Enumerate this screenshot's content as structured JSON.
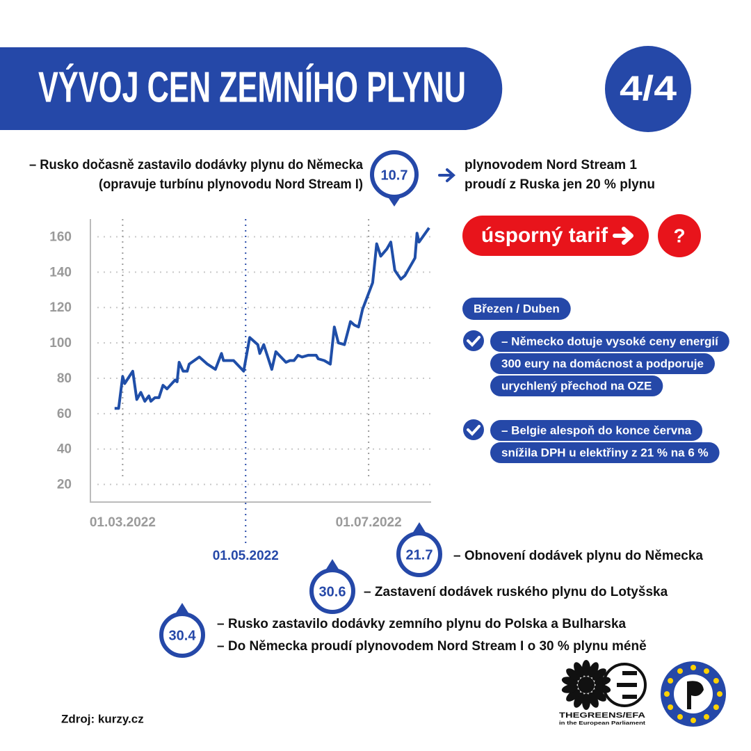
{
  "header": {
    "title": "VÝVOJ CEN ZEMNÍHO PLYNU",
    "page": "4/4"
  },
  "chart_data": {
    "type": "line",
    "color": "#1f4ea8",
    "x": [
      "25.02.2022",
      "27.02.2022",
      "01.03.2022",
      "02.03.2022",
      "06.03.2022",
      "08.03.2022",
      "10.03.2022",
      "12.03.2022",
      "14.03.2022",
      "15.03.2022",
      "17.03.2022",
      "19.03.2022",
      "21.03.2022",
      "23.03.2022",
      "27.03.2022",
      "28.03.2022",
      "29.03.2022",
      "31.03.2022",
      "02.04.2022",
      "03.04.2022",
      "08.04.2022",
      "12.04.2022",
      "16.04.2022",
      "19.04.2022",
      "20.04.2022",
      "25.04.2022",
      "30.04.2022",
      "03.05.2022",
      "07.05.2022",
      "08.05.2022",
      "10.05.2022",
      "14.05.2022",
      "16.05.2022",
      "21.05.2022",
      "23.05.2022",
      "25.05.2022",
      "27.05.2022",
      "29.05.2022",
      "01.06.2022",
      "05.06.2022",
      "06.06.2022",
      "09.06.2022",
      "12.06.2022",
      "14.06.2022",
      "16.06.2022",
      "19.06.2022",
      "22.06.2022",
      "24.06.2022",
      "26.06.2022",
      "28.06.2022",
      "29.06.2022",
      "03.07.2022",
      "05.07.2022",
      "07.07.2022",
      "10.07.2022",
      "12.07.2022",
      "14.07.2022",
      "17.07.2022",
      "19.07.2022",
      "23.07.2022",
      "24.07.2022",
      "25.07.2022",
      "26.07.2022",
      "31.07.2022"
    ],
    "values": [
      63,
      63,
      81,
      77,
      84,
      68,
      72,
      67,
      70,
      67,
      69,
      69,
      76,
      74,
      79,
      78,
      89,
      84,
      84,
      88,
      92,
      88,
      85,
      94,
      90,
      90,
      84,
      103,
      99,
      94,
      99,
      85,
      95,
      89,
      90,
      90,
      93,
      92,
      93,
      93,
      91,
      90,
      88,
      109,
      100,
      99,
      112,
      110,
      109,
      119,
      122,
      134,
      156,
      149,
      153,
      157,
      141,
      136,
      138,
      146,
      148,
      162,
      157,
      165
    ],
    "xlim": [
      "13.02.2022",
      "01.08.2022"
    ],
    "xticks": [
      "01.03.2022",
      "01.05.2022",
      "01.07.2022"
    ],
    "xtick_colors": [
      "#9a9a9a",
      "#2548a8",
      "#9a9a9a"
    ],
    "ylim": [
      10,
      170
    ],
    "yticks": [
      20,
      40,
      60,
      80,
      100,
      120,
      140,
      160
    ],
    "grid": true
  },
  "notes": {
    "top": {
      "date": "10.7",
      "left": [
        "– Rusko dočasně zastavilo dodávky plynu do Německa",
        "(opravuje turbínu plynovodu Nord Stream I)"
      ],
      "right": [
        "plynovodem Nord Stream 1",
        "proudí z Ruska jen 20 % plynu"
      ]
    },
    "events": [
      {
        "date": "21.7",
        "lines": [
          "– Obnovení dodávek plynu do Německa"
        ]
      },
      {
        "date": "30.6",
        "lines": [
          "– Zastavení dodávek ruského plynu do Lotyšska"
        ]
      },
      {
        "date": "30.4",
        "lines": [
          "– Rusko zastavilo dodávky zemního plynu do Polska a Bulharska",
          "– Do Německa proudí plynovodem Nord Stream I o 30 % plynu méně"
        ]
      }
    ]
  },
  "panel": {
    "button": "úsporný tarif",
    "help": "?",
    "period": "Březen / Duben",
    "measures": [
      [
        "– Německo dotuje vysoké ceny energií",
        "300 eury na domácnost a podporuje",
        "urychlený přechod na OZE"
      ],
      [
        "– Belgie alespoň do konce června",
        "snížila DPH u elektřiny z 21 % na 6 %"
      ]
    ]
  },
  "footer": {
    "source": "Zdroj: kurzy.cz",
    "greens": "THEGREENS/EFA",
    "greens_sub": "in the European Parliament"
  }
}
